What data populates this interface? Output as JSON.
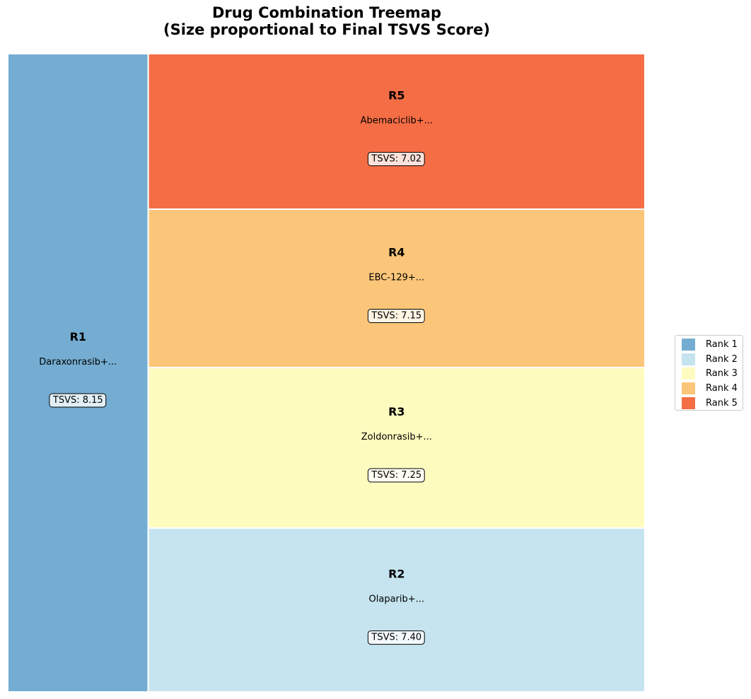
{
  "chart_data": {
    "type": "treemap",
    "title_lines": [
      "Drug Combination Treemap",
      "(Size proportional to Final TSVS Score)"
    ],
    "items": [
      {
        "rank_label": "R1",
        "name": "Daraxonrasib+...",
        "score_label": "TSVS: 8.15",
        "value": 8.15,
        "color": "#74add1"
      },
      {
        "rank_label": "R2",
        "name": "Olaparib+...",
        "score_label": "TSVS: 7.40",
        "value": 7.4,
        "color": "#c5e4ef"
      },
      {
        "rank_label": "R3",
        "name": "Zoldonrasib+...",
        "score_label": "TSVS: 7.25",
        "value": 7.25,
        "color": "#fefbbf"
      },
      {
        "rank_label": "R4",
        "name": "EBC-129+...",
        "score_label": "TSVS: 7.15",
        "value": 7.15,
        "color": "#fbc679"
      },
      {
        "rank_label": "R5",
        "name": "Abemaciclib+...",
        "score_label": "TSVS: 7.02",
        "value": 7.02,
        "color": "#f46d45"
      }
    ],
    "legend": {
      "placement": "center-right",
      "entries": [
        {
          "label": "Rank 1",
          "color": "#74add1"
        },
        {
          "label": "Rank 2",
          "color": "#c5e4ef"
        },
        {
          "label": "Rank 3",
          "color": "#fefbbf"
        },
        {
          "label": "Rank 4",
          "color": "#fbc679"
        },
        {
          "label": "Rank 5",
          "color": "#f46d45"
        }
      ]
    }
  }
}
